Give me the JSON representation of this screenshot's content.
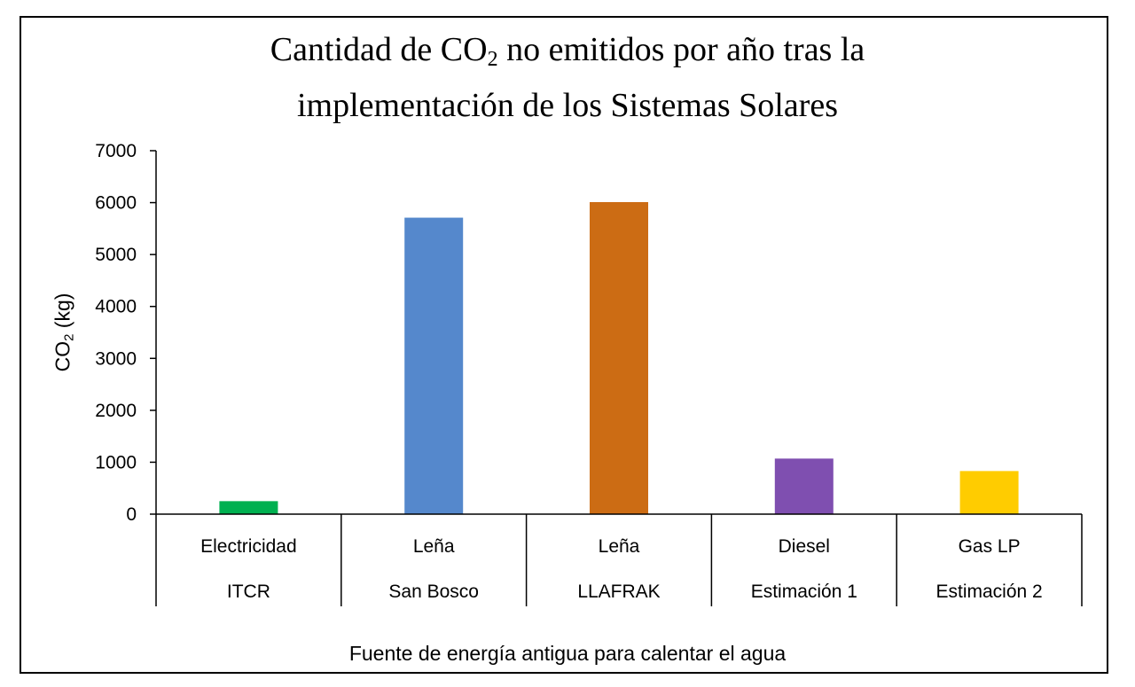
{
  "chart_data": {
    "type": "bar",
    "title": {
      "line1_before": "Cantidad de CO",
      "line1_sub": "2",
      "line1_after": " no emitidos por año tras la",
      "line2": "implementación de los Sistemas Solares"
    },
    "ylabel": {
      "before": "CO",
      "sub": "2",
      "after": " (kg)"
    },
    "xlabel": "Fuente de energía antigua para calentar el agua",
    "ylim": [
      0,
      7000
    ],
    "yticks": [
      "0",
      "1000",
      "2000",
      "3000",
      "4000",
      "5000",
      "6000",
      "7000"
    ],
    "grid": false,
    "legend": "none",
    "categories": [
      {
        "line1": "Electricidad",
        "line2": "ITCR"
      },
      {
        "line1": "Leña",
        "line2": "San Bosco"
      },
      {
        "line1": "Leña",
        "line2": "LLAFRAK"
      },
      {
        "line1": "Diesel",
        "line2": "Estimación 1"
      },
      {
        "line1": "Gas LP",
        "line2": "Estimación 2"
      }
    ],
    "values": [
      250,
      5710,
      6010,
      1070,
      830
    ],
    "colors": [
      "#00b050",
      "#5588cc",
      "#cc6c14",
      "#7f4fb0",
      "#ffcc00"
    ]
  }
}
